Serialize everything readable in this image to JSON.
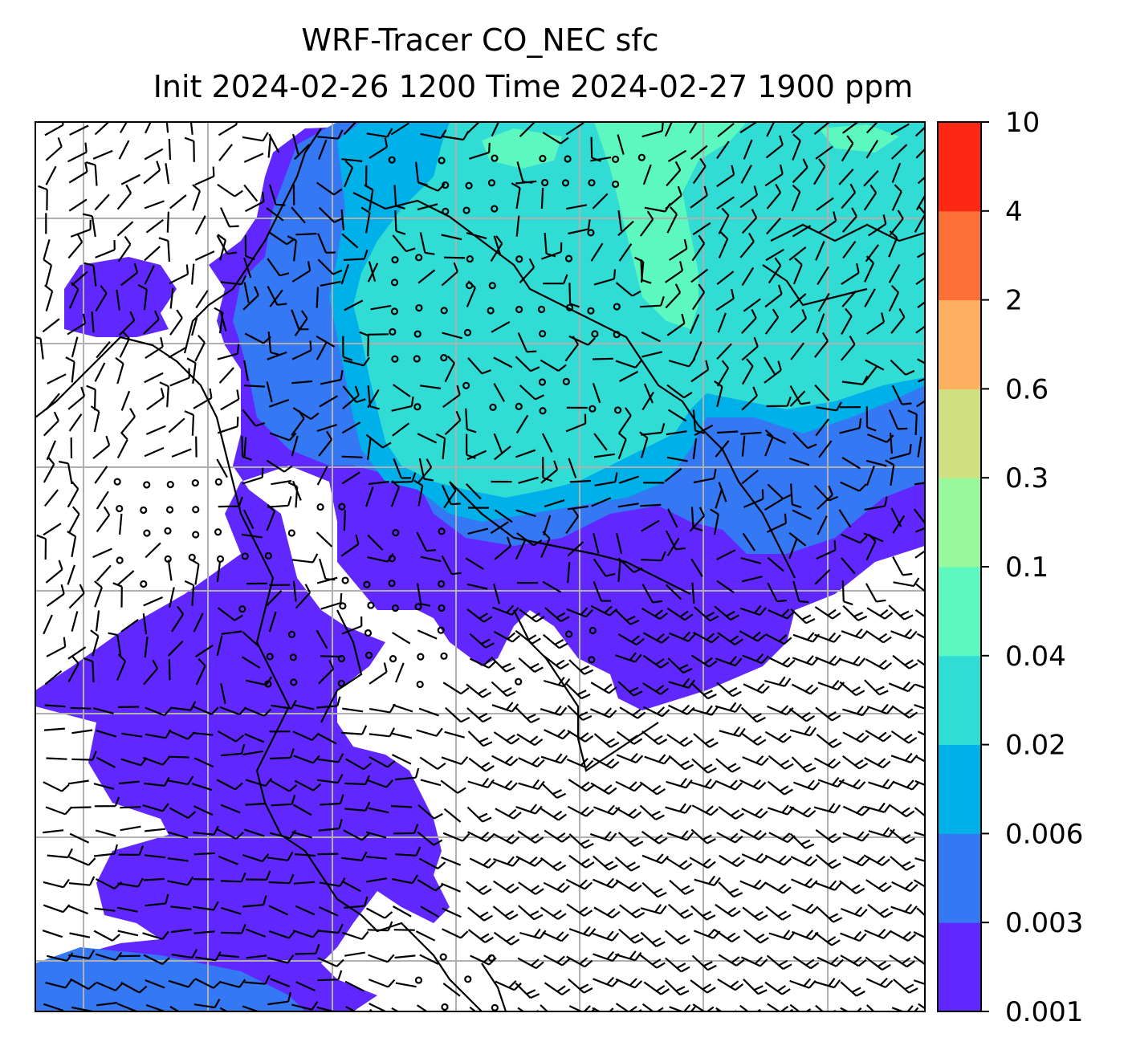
{
  "title": {
    "line1": "WRF-Tracer CO_NEC sfc",
    "line2": "Init 2024-02-26 1200 Time 2024-02-27 1900 ppm"
  },
  "colorbar": {
    "ticks": [
      "0.001",
      "0.003",
      "0.006",
      "0.02",
      "0.04",
      "0.1",
      "0.3",
      "0.6",
      "2",
      "4",
      "10"
    ],
    "colors": [
      "#6028ff",
      "#3478f4",
      "#00b0e8",
      "#30dcd4",
      "#5cf8c0",
      "#98f89c",
      "#d0e080",
      "#fcb060",
      "#fc7038",
      "#fc2814"
    ]
  },
  "map": {
    "background": "#ffffff",
    "grid_color": "#b0b0b0",
    "coastline_color": "#000000"
  }
}
